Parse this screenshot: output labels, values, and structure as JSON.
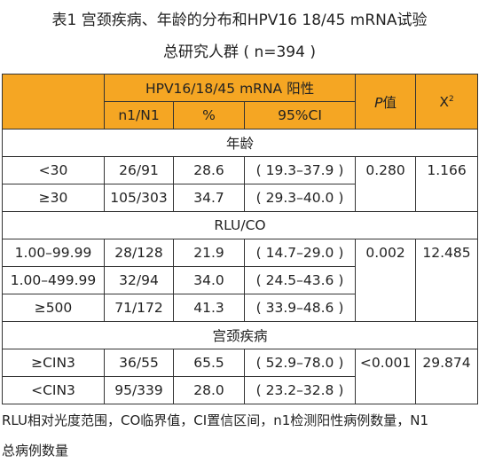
{
  "title": {
    "line1": "表1 宫颈疾病、年龄的分布和HPV16 18/45 mRNA试验",
    "line2": "总研究人群 ( n=394 )"
  },
  "table": {
    "header": {
      "group": "HPV16/18/45 mRNA 阳性",
      "p_value": "值",
      "p_letter": "P",
      "chi": "X",
      "chi_sup": "2",
      "n1": "n1/N1",
      "pct": "%",
      "ci": "95%CI"
    },
    "sections": [
      {
        "name": "年龄",
        "rows": [
          {
            "label": "<30",
            "n": "26/91",
            "pct": "28.6",
            "ci": "( 19.3–37.9 )",
            "p": "0.280",
            "chi": "1.166"
          },
          {
            "label": "≥30",
            "n": "105/303",
            "pct": "34.7",
            "ci": "( 29.3–40.0 )",
            "p": "",
            "chi": ""
          }
        ]
      },
      {
        "name": "RLU/CO",
        "rows": [
          {
            "label": "1.00–99.99",
            "n": "28/128",
            "pct": "21.9",
            "ci": "( 14.7–29.0 )",
            "p": "0.002",
            "chi": "12.485"
          },
          {
            "label": "1.00–499.99",
            "n": "32/94",
            "pct": "34.0",
            "ci": "( 24.5–43.6 )",
            "p": "",
            "chi": ""
          },
          {
            "label": "≥500",
            "n": "71/172",
            "pct": "41.3",
            "ci": "( 33.9–48.6 )",
            "p": "",
            "chi": ""
          }
        ]
      },
      {
        "name": "宫颈疾病",
        "rows": [
          {
            "label": "≥CIN3",
            "n": "36/55",
            "pct": "65.5",
            "ci": "( 52.9–78.0 )",
            "p": "<0.001",
            "chi": "29.874"
          },
          {
            "label": "<CIN3",
            "n": "95/339",
            "pct": "28.0",
            "ci": "( 23.2–32.8 )",
            "p": "",
            "chi": ""
          }
        ]
      }
    ]
  },
  "note": {
    "line1": "RLU相对光度范围，CO临界值，CI置信区间，n1检测阳性病例数量，N1",
    "line2": "总病例数量"
  }
}
